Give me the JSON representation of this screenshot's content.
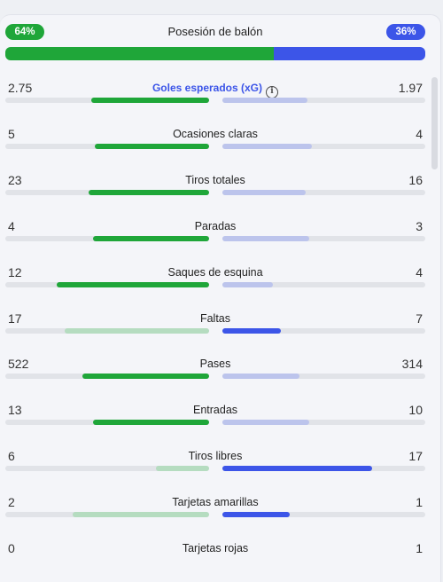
{
  "possession": {
    "title": "Posesión de balón",
    "home_label": "64%",
    "away_label": "36%",
    "home_fraction": 0.64,
    "away_fraction": 0.36
  },
  "colors": {
    "home_strong": "#1fa639",
    "home_weak": "#b5dcc0",
    "away_strong": "#3c55e8",
    "away_weak": "#bcc4ec"
  },
  "stats": [
    {
      "label": "Goles esperados (xG)",
      "home": "2.75",
      "away": "1.97",
      "home_fraction": 0.58,
      "away_fraction": 0.42,
      "highlight": "home",
      "has_info_icon": true
    },
    {
      "label": "Ocasiones claras",
      "home": "5",
      "away": "4",
      "home_fraction": 0.56,
      "away_fraction": 0.44,
      "highlight": "home"
    },
    {
      "label": "Tiros totales",
      "home": "23",
      "away": "16",
      "home_fraction": 0.59,
      "away_fraction": 0.41,
      "highlight": "home"
    },
    {
      "label": "Paradas",
      "home": "4",
      "away": "3",
      "home_fraction": 0.57,
      "away_fraction": 0.43,
      "highlight": "home"
    },
    {
      "label": "Saques de esquina",
      "home": "12",
      "away": "4",
      "home_fraction": 0.75,
      "away_fraction": 0.25,
      "highlight": "home"
    },
    {
      "label": "Faltas",
      "home": "17",
      "away": "7",
      "home_fraction": 0.71,
      "away_fraction": 0.29,
      "highlight": "away"
    },
    {
      "label": "Pases",
      "home": "522",
      "away": "314",
      "home_fraction": 0.62,
      "away_fraction": 0.38,
      "highlight": "home"
    },
    {
      "label": "Entradas",
      "home": "13",
      "away": "10",
      "home_fraction": 0.57,
      "away_fraction": 0.43,
      "highlight": "home"
    },
    {
      "label": "Tiros libres",
      "home": "6",
      "away": "17",
      "home_fraction": 0.26,
      "away_fraction": 0.74,
      "highlight": "away"
    },
    {
      "label": "Tarjetas amarillas",
      "home": "2",
      "away": "1",
      "home_fraction": 0.67,
      "away_fraction": 0.33,
      "highlight": "away"
    },
    {
      "label": "Tarjetas rojas",
      "home": "0",
      "away": "1",
      "home_fraction": 0.0,
      "away_fraction": 1.0,
      "highlight": "away",
      "bars_hidden": true
    }
  ]
}
